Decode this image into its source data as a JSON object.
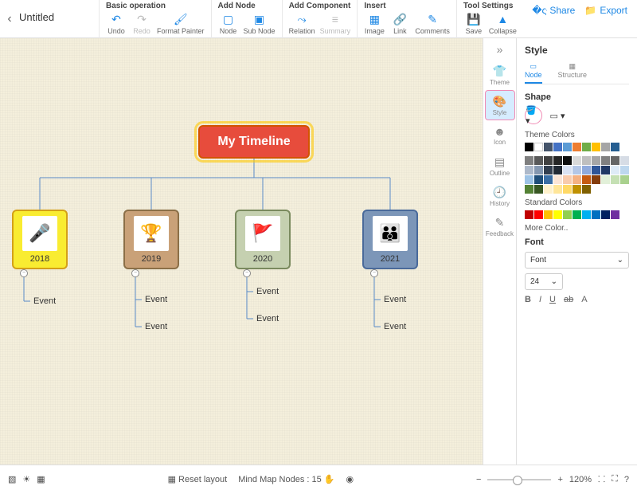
{
  "title": "Untitled",
  "toolbar": {
    "groups": [
      {
        "label": "Basic operation",
        "items": [
          {
            "k": "undo",
            "t": "Undo",
            "i": "↶"
          },
          {
            "k": "redo",
            "t": "Redo",
            "i": "↷",
            "dis": true
          },
          {
            "k": "fmt",
            "t": "Format Painter",
            "i": "🖌"
          }
        ]
      },
      {
        "label": "Add Node",
        "items": [
          {
            "k": "node",
            "t": "Node",
            "i": "▢"
          },
          {
            "k": "sub",
            "t": "Sub Node",
            "i": "▣"
          }
        ]
      },
      {
        "label": "Add Component",
        "items": [
          {
            "k": "rel",
            "t": "Relation",
            "i": "⤳"
          },
          {
            "k": "sum",
            "t": "Summary",
            "i": "≡",
            "dis": true
          }
        ]
      },
      {
        "label": "Insert",
        "items": [
          {
            "k": "img",
            "t": "Image",
            "i": "▦"
          },
          {
            "k": "link",
            "t": "Link",
            "i": "🔗"
          },
          {
            "k": "cmt",
            "t": "Comments",
            "i": "✎"
          }
        ]
      },
      {
        "label": "Tool Settings",
        "items": [
          {
            "k": "save",
            "t": "Save",
            "i": "💾"
          },
          {
            "k": "col",
            "t": "Collapse",
            "i": "▲"
          }
        ]
      }
    ]
  },
  "share": "Share",
  "export": "Export",
  "canvas": {
    "root": "My Timeline",
    "years": [
      {
        "y": "2018",
        "emoji": "🎤"
      },
      {
        "y": "2019",
        "emoji": "🏆"
      },
      {
        "y": "2020",
        "emoji": "🚩"
      },
      {
        "y": "2021",
        "emoji": "👪"
      }
    ],
    "eventLabel": "Event"
  },
  "sideTabs": [
    {
      "k": "theme",
      "t": "Theme",
      "i": "👕"
    },
    {
      "k": "style",
      "t": "Style",
      "i": "🎨",
      "active": true
    },
    {
      "k": "icon",
      "t": "Icon",
      "i": "☻"
    },
    {
      "k": "outline",
      "t": "Outline",
      "i": "▤"
    },
    {
      "k": "history",
      "t": "History",
      "i": "🕘"
    },
    {
      "k": "feedback",
      "t": "Feedback",
      "i": "✎"
    }
  ],
  "panel": {
    "title": "Style",
    "tabs": {
      "node": "Node",
      "structure": "Structure"
    },
    "shape": "Shape",
    "themeColorsLabel": "Theme Colors",
    "stdColorsLabel": "Standard Colors",
    "moreColor": "More Color..",
    "themeColors": [
      "#000000",
      "#ffffff",
      "#44546a",
      "#4472c4",
      "#5b9bd5",
      "#ed7d31",
      "#70ad47",
      "#ffc000",
      "#a5a5a5",
      "#255e91"
    ],
    "tints": [
      "#7f7f7f",
      "#595959",
      "#404040",
      "#262626",
      "#0d0d0d",
      "#d9d9d9",
      "#bfbfbf",
      "#a6a6a6",
      "#808080",
      "#666666",
      "#d6dce5",
      "#adb9ca",
      "#8497b0",
      "#333f50",
      "#222a35",
      "#d9e2f3",
      "#b4c7e7",
      "#8faadc",
      "#2f5597",
      "#203864",
      "#deebf7",
      "#bdd7ee",
      "#9dc3e6",
      "#1f4e79",
      "#3a6ea5",
      "#fbe5d6",
      "#f8cbad",
      "#f4b183",
      "#c55a11",
      "#843c0c",
      "#e2f0d9",
      "#c5e0b4",
      "#a9d18e",
      "#548235",
      "#385723",
      "#fff2cc",
      "#ffe699",
      "#ffd966",
      "#bf9000",
      "#806000"
    ],
    "stdColors": [
      "#c00000",
      "#ff0000",
      "#ffc000",
      "#ffff00",
      "#92d050",
      "#00b050",
      "#00b0f0",
      "#0070c0",
      "#002060",
      "#7030a0"
    ],
    "fontLabel": "Font",
    "fontSel": "Font",
    "fontSize": "24",
    "formats": {
      "b": "B",
      "i": "I",
      "u": "U",
      "s": "ab",
      "a": "A"
    }
  },
  "status": {
    "reset": "Reset layout",
    "nodes": "Mind Map Nodes :",
    "count": "15",
    "zoom": "120%"
  }
}
